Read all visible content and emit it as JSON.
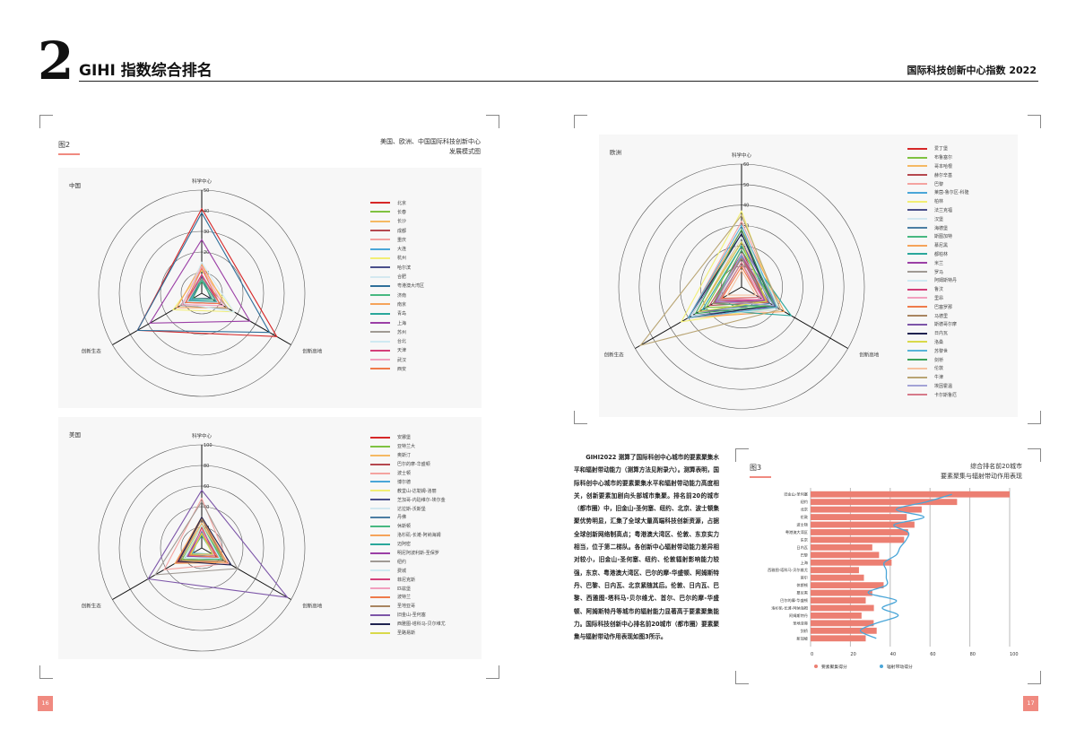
{
  "header": {
    "chapter_number": "2",
    "chapter_title": "GIHI 指数综合排名",
    "running_title": "国际科技创新中心指数 2022"
  },
  "figure2": {
    "label": "图2",
    "title_line1": "美国、欧洲、中国国际科技创新中心",
    "title_line2": "发展模式图"
  },
  "figure3": {
    "label": "图3",
    "title_line1": "综合排名前20城市",
    "title_line2": "要素聚集与辐射带动作用表现"
  },
  "body_text": "GIHI2022 测算了国际科创中心城市的要素聚集水平和辐射带动能力（测算方法见附录六）。测算表明，国际科创中心城市的要素聚集水平和辐射带动能力高度相关，创新要素加剧向头部城市集聚。排名前20的城市（都市圈）中，旧金山-圣何塞、纽约、北京、波士顿集聚优势明显，汇集了全球大量高端科技创新资源，占据全球创新网络制高点；粤港澳大湾区、伦敦、东京实力相当，位于第二梯队。各创新中心辐射带动能力差异相对较小，旧金山-圣何塞、纽约、伦敦辐射影响能力较强，东京、粤港澳大湾区、巴尔的摩-华盛顿、阿姆斯特丹、巴黎、日内瓦、北京紧随其后。伦敦、日内瓦、巴黎、西雅图-塔科马-贝尔维尤、首尔、巴尔的摩-华盛顿、阿姆斯特丹等城市的辐射能力显著高于要素聚集能力。国际科技创新中心排名前20城市（都市圈）要素聚集与辐射带动作用表现如图3所示。",
  "pages": {
    "left": "16",
    "right": "17"
  },
  "colors": {
    "accent": "#f08a80",
    "bar": "#ec7f72",
    "line": "#4aa6d8"
  },
  "chart_data": [
    {
      "type": "radar",
      "region": "中国",
      "axes": [
        "科学中心",
        "创新高地",
        "创新生态"
      ],
      "ticks": [
        10,
        20,
        30,
        40,
        50
      ],
      "range": [
        0,
        50
      ],
      "legend_position": "right",
      "series": [
        {
          "name": "北京",
          "color": "#d62728",
          "values": [
            41,
            42,
            36
          ]
        },
        {
          "name": "长春",
          "color": "#7fc241",
          "values": [
            6,
            6,
            5
          ]
        },
        {
          "name": "长沙",
          "color": "#f5b963",
          "values": [
            7,
            8,
            7
          ]
        },
        {
          "name": "成都",
          "color": "#b5484f",
          "values": [
            9,
            9,
            9
          ]
        },
        {
          "name": "重庆",
          "color": "#f4a3a0",
          "values": [
            8,
            8,
            8
          ]
        },
        {
          "name": "大连",
          "color": "#4aa6d8",
          "values": [
            6,
            6,
            6
          ]
        },
        {
          "name": "杭州",
          "color": "#f2ee74",
          "values": [
            11,
            18,
            16
          ]
        },
        {
          "name": "哈尔滨",
          "color": "#4a4f8a",
          "values": [
            8,
            5,
            5
          ]
        },
        {
          "name": "合肥",
          "color": "#d3e8f0",
          "values": [
            12,
            9,
            8
          ]
        },
        {
          "name": "粤港澳大湾区",
          "color": "#2f6f9a",
          "values": [
            39,
            38,
            36
          ]
        },
        {
          "name": "济南",
          "color": "#47b881",
          "values": [
            6,
            6,
            5
          ]
        },
        {
          "name": "南京",
          "color": "#f5a35a",
          "values": [
            14,
            14,
            14
          ]
        },
        {
          "name": "青岛",
          "color": "#2aa79b",
          "values": [
            7,
            8,
            7
          ]
        },
        {
          "name": "上海",
          "color": "#9b3fa6",
          "values": [
            26,
            27,
            29
          ]
        },
        {
          "name": "苏州",
          "color": "#a09a94",
          "values": [
            7,
            15,
            12
          ]
        },
        {
          "name": "台北",
          "color": "#cfe9f2",
          "values": [
            15,
            18,
            10
          ]
        },
        {
          "name": "天津",
          "color": "#d43f7a",
          "values": [
            9,
            10,
            9
          ]
        },
        {
          "name": "武汉",
          "color": "#f2a0bf",
          "values": [
            13,
            12,
            11
          ]
        },
        {
          "name": "西安",
          "color": "#ef7b4a",
          "values": [
            12,
            10,
            9
          ]
        }
      ]
    },
    {
      "type": "radar",
      "region": "美国",
      "axes": [
        "科学中心",
        "创新高地",
        "创新生态"
      ],
      "ticks": [
        20,
        40,
        60,
        80,
        100
      ],
      "range": [
        0,
        100
      ],
      "legend_position": "right",
      "series": [
        {
          "name": "安娜堡",
          "color": "#d62728",
          "values": [
            20,
            15,
            12
          ]
        },
        {
          "name": "亚特兰大",
          "color": "#7fc241",
          "values": [
            22,
            25,
            22
          ]
        },
        {
          "name": "奥斯汀",
          "color": "#f5b963",
          "values": [
            24,
            28,
            25
          ]
        },
        {
          "name": "巴尔的摩-华盛顿",
          "color": "#b5484f",
          "values": [
            28,
            28,
            28
          ]
        },
        {
          "name": "波士顿",
          "color": "#f4a3a0",
          "values": [
            48,
            30,
            42
          ]
        },
        {
          "name": "博尔德",
          "color": "#4aa6d8",
          "values": [
            18,
            12,
            10
          ]
        },
        {
          "name": "教堂山-达勒姆-洛丽",
          "color": "#f2ee74",
          "values": [
            22,
            18,
            17
          ]
        },
        {
          "name": "芝加哥-内珀维尔-埃尔金",
          "color": "#4a4f8a",
          "values": [
            22,
            22,
            20
          ]
        },
        {
          "name": "达拉斯-沃斯堡",
          "color": "#d3e8f0",
          "values": [
            16,
            20,
            18
          ]
        },
        {
          "name": "丹佛",
          "color": "#4c7ea3",
          "values": [
            16,
            18,
            16
          ]
        },
        {
          "name": "休斯顿",
          "color": "#47b881",
          "values": [
            22,
            22,
            20
          ]
        },
        {
          "name": "洛杉矶-长滩-阿纳海姆",
          "color": "#f5a35a",
          "values": [
            30,
            28,
            30
          ]
        },
        {
          "name": "迈阿密",
          "color": "#2aa79b",
          "values": [
            12,
            14,
            14
          ]
        },
        {
          "name": "明尼阿波利斯-圣保罗",
          "color": "#9b3fa6",
          "values": [
            18,
            18,
            16
          ]
        },
        {
          "name": "纽约",
          "color": "#a09a94",
          "values": [
            45,
            40,
            52
          ]
        },
        {
          "name": "费城",
          "color": "#cfe9f2",
          "values": [
            22,
            20,
            20
          ]
        },
        {
          "name": "菲尼克斯",
          "color": "#d43f7a",
          "values": [
            14,
            18,
            14
          ]
        },
        {
          "name": "匹兹堡",
          "color": "#f2a0bf",
          "values": [
            18,
            14,
            12
          ]
        },
        {
          "name": "波特兰",
          "color": "#ef7b4a",
          "values": [
            14,
            18,
            14
          ]
        },
        {
          "name": "圣地亚哥",
          "color": "#a88560",
          "values": [
            28,
            25,
            24
          ]
        },
        {
          "name": "旧金山-圣何塞",
          "color": "#7c55a8",
          "values": [
            56,
            96,
            60
          ]
        },
        {
          "name": "西雅图-塔科马-贝尔维尤",
          "color": "#1f2350",
          "values": [
            30,
            33,
            26
          ]
        },
        {
          "name": "圣路易斯",
          "color": "#d9d94a",
          "values": [
            14,
            12,
            12
          ]
        }
      ]
    },
    {
      "type": "radar",
      "region": "欧洲",
      "axes": [
        "科学中心",
        "创新高地",
        "创新生态"
      ],
      "ticks": [
        10,
        20,
        30,
        40,
        50,
        60
      ],
      "range": [
        0,
        60
      ],
      "legend_position": "right",
      "series": [
        {
          "name": "爱丁堡",
          "color": "#d62728",
          "values": [
            18,
            14,
            16
          ]
        },
        {
          "name": "布鲁塞尔",
          "color": "#7fc241",
          "values": [
            20,
            18,
            20
          ]
        },
        {
          "name": "哥本哈根",
          "color": "#f5b963",
          "values": [
            24,
            20,
            24
          ]
        },
        {
          "name": "赫尔辛基",
          "color": "#b5484f",
          "values": [
            16,
            15,
            18
          ]
        },
        {
          "name": "巴黎",
          "color": "#f4a3a0",
          "values": [
            32,
            22,
            30
          ]
        },
        {
          "name": "莱茵-鲁尔区-科隆",
          "color": "#4aa6d8",
          "values": [
            15,
            14,
            16
          ]
        },
        {
          "name": "柏林",
          "color": "#f2ee74",
          "values": [
            37,
            20,
            34
          ]
        },
        {
          "name": "法兰克福",
          "color": "#4a4f8a",
          "values": [
            26,
            19,
            28
          ]
        },
        {
          "name": "汉堡",
          "color": "#d3e8f0",
          "values": [
            14,
            13,
            15
          ]
        },
        {
          "name": "海德堡",
          "color": "#4c7ea3",
          "values": [
            22,
            16,
            24
          ]
        },
        {
          "name": "斯图加特",
          "color": "#47b881",
          "values": [
            18,
            20,
            16
          ]
        },
        {
          "name": "慕尼黑",
          "color": "#f5a35a",
          "values": [
            28,
            24,
            30
          ]
        },
        {
          "name": "都柏林",
          "color": "#2aa79b",
          "values": [
            20,
            28,
            22
          ]
        },
        {
          "name": "米兰",
          "color": "#9b3fa6",
          "values": [
            14,
            13,
            15
          ]
        },
        {
          "name": "罗马",
          "color": "#a09a94",
          "values": [
            12,
            12,
            13
          ]
        },
        {
          "name": "阿姆斯特丹",
          "color": "#cfe9f2",
          "values": [
            24,
            22,
            28
          ]
        },
        {
          "name": "鲁汶",
          "color": "#d43f7a",
          "values": [
            16,
            12,
            14
          ]
        },
        {
          "name": "里昂",
          "color": "#f2a0bf",
          "values": [
            12,
            12,
            12
          ]
        },
        {
          "name": "巴塞罗那",
          "color": "#ef7b4a",
          "values": [
            10,
            10,
            11
          ]
        },
        {
          "name": "马德里",
          "color": "#a88560",
          "values": [
            14,
            14,
            16
          ]
        },
        {
          "name": "斯德哥尔摩",
          "color": "#7c55a8",
          "values": [
            22,
            20,
            24
          ]
        },
        {
          "name": "日内瓦",
          "color": "#1f2350",
          "values": [
            26,
            18,
            30
          ]
        },
        {
          "name": "洛桑",
          "color": "#d9d94a",
          "values": [
            22,
            14,
            24
          ]
        },
        {
          "name": "苏黎世",
          "color": "#58b4d8",
          "values": [
            30,
            20,
            30
          ]
        },
        {
          "name": "剑桥",
          "color": "#3da35a",
          "values": [
            28,
            18,
            26
          ]
        },
        {
          "name": "伦敦",
          "color": "#f7c2a0",
          "values": [
            8,
            8,
            8
          ]
        },
        {
          "name": "牛津",
          "color": "#b9a574",
          "values": [
            35,
            22,
            57
          ]
        },
        {
          "name": "埃因霍温",
          "color": "#a3a3d6",
          "values": [
            16,
            18,
            14
          ]
        },
        {
          "name": "卡尔斯鲁厄",
          "color": "#d67a8a",
          "values": [
            12,
            10,
            12
          ]
        }
      ]
    },
    {
      "type": "bar+line",
      "orientation": "horizontal",
      "title": "综合排名前20城市 要素聚集与辐射带动作用表现",
      "categories": [
        "旧金山-圣何塞",
        "纽约",
        "北京",
        "伦敦",
        "波士顿",
        "粤港澳大湾区",
        "东京",
        "日内瓦",
        "巴黎",
        "上海",
        "西雅图-塔科马-贝尔维尤",
        "首尔",
        "休斯顿",
        "慕尼黑",
        "巴尔的摩-华盛顿",
        "洛杉矶-长滩-阿纳海姆",
        "阿姆斯特丹",
        "圣地亚哥",
        "剑桥",
        "新加坡"
      ],
      "xlim": [
        0,
        100
      ],
      "xticks": [
        "0",
        "20",
        "40",
        "60",
        "80",
        "100"
      ],
      "grid": true,
      "legend_position": "bottom",
      "series": [
        {
          "name": "要素聚集得分",
          "type": "bar",
          "color": "#ec7f72",
          "values": [
            100,
            73.6,
            55.8,
            48.3,
            52.2,
            49,
            47,
            31,
            34.4,
            40.7,
            24.3,
            26.8,
            36.7,
            31,
            27.7,
            31.8,
            25.6,
            31.7,
            33.2,
            27.7
          ]
        },
        {
          "name": "辐射带动得分",
          "type": "line",
          "color": "#4aa6d8",
          "values": [
            71,
            58,
            43,
            57,
            42,
            49,
            48,
            45,
            43,
            37,
            38,
            38,
            38,
            29,
            43,
            36,
            44,
            33,
            25,
            33
          ]
        }
      ]
    }
  ]
}
